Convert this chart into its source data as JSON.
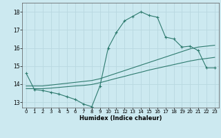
{
  "title": "",
  "xlabel": "Humidex (Indice chaleur)",
  "ylabel": "",
  "bg_color": "#cce9f0",
  "grid_color": "#b8d8e0",
  "line_color": "#2d7a6e",
  "xlim": [
    -0.5,
    23.5
  ],
  "ylim": [
    12.7,
    18.5
  ],
  "xticks": [
    0,
    1,
    2,
    3,
    4,
    5,
    6,
    7,
    8,
    9,
    10,
    11,
    12,
    13,
    14,
    15,
    16,
    17,
    18,
    19,
    20,
    21,
    22,
    23
  ],
  "yticks": [
    13,
    14,
    15,
    16,
    17,
    18
  ],
  "line1_x": [
    0,
    1,
    2,
    3,
    4,
    5,
    6,
    7,
    8,
    9,
    10,
    11,
    12,
    13,
    14,
    15,
    16,
    17,
    18,
    19,
    20,
    21,
    22,
    23
  ],
  "line1_y": [
    14.6,
    13.7,
    13.65,
    13.55,
    13.45,
    13.3,
    13.15,
    12.9,
    12.75,
    13.9,
    16.0,
    16.85,
    17.5,
    17.75,
    18.0,
    17.8,
    17.7,
    16.6,
    16.5,
    16.05,
    16.1,
    15.85,
    14.9,
    14.9
  ],
  "line2_x": [
    0,
    1,
    2,
    3,
    4,
    5,
    6,
    7,
    8,
    9,
    10,
    11,
    12,
    13,
    14,
    15,
    16,
    17,
    18,
    19,
    20,
    21,
    22,
    23
  ],
  "line2_y": [
    13.9,
    13.9,
    13.9,
    13.95,
    14.0,
    14.05,
    14.1,
    14.15,
    14.2,
    14.3,
    14.45,
    14.6,
    14.75,
    14.9,
    15.05,
    15.2,
    15.35,
    15.5,
    15.65,
    15.8,
    15.95,
    16.05,
    16.1,
    16.15
  ],
  "line3_x": [
    0,
    1,
    2,
    3,
    4,
    5,
    6,
    7,
    8,
    9,
    10,
    11,
    12,
    13,
    14,
    15,
    16,
    17,
    18,
    19,
    20,
    21,
    22,
    23
  ],
  "line3_y": [
    13.75,
    13.75,
    13.75,
    13.78,
    13.82,
    13.86,
    13.9,
    13.93,
    13.98,
    14.08,
    14.2,
    14.32,
    14.43,
    14.55,
    14.66,
    14.78,
    14.88,
    14.98,
    15.08,
    15.18,
    15.28,
    15.36,
    15.42,
    15.48
  ]
}
